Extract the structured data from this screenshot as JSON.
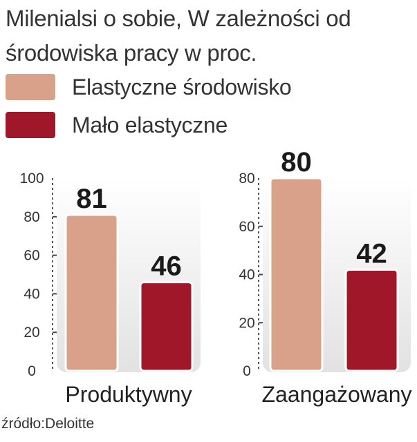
{
  "title": "Milenialsi o sobie, W zależności od środowiska pracy w proc.",
  "legend": [
    {
      "label": "Elastyczne środowisko",
      "color": "#d9a08a"
    },
    {
      "label": "Mało elastyczne",
      "color": "#a0172a"
    }
  ],
  "chart_data": [
    {
      "type": "bar",
      "xlabel": "Produktywny",
      "ylim": [
        0,
        100
      ],
      "yticks": [
        "100",
        "80",
        "60",
        "40",
        "20",
        "0"
      ],
      "series": [
        {
          "name": "Elastyczne środowisko",
          "values": [
            81
          ]
        },
        {
          "name": "Mało elastyczne",
          "values": [
            46
          ]
        }
      ]
    },
    {
      "type": "bar",
      "xlabel": "Zaangażowany",
      "ylim": [
        0,
        80
      ],
      "yticks": [
        "80",
        "60",
        "40",
        "20",
        "0"
      ],
      "series": [
        {
          "name": "Elastyczne środowisko",
          "values": [
            80
          ]
        },
        {
          "name": "Mało elastyczne",
          "values": [
            42
          ]
        }
      ]
    }
  ],
  "source": "źródło:Deloitte"
}
